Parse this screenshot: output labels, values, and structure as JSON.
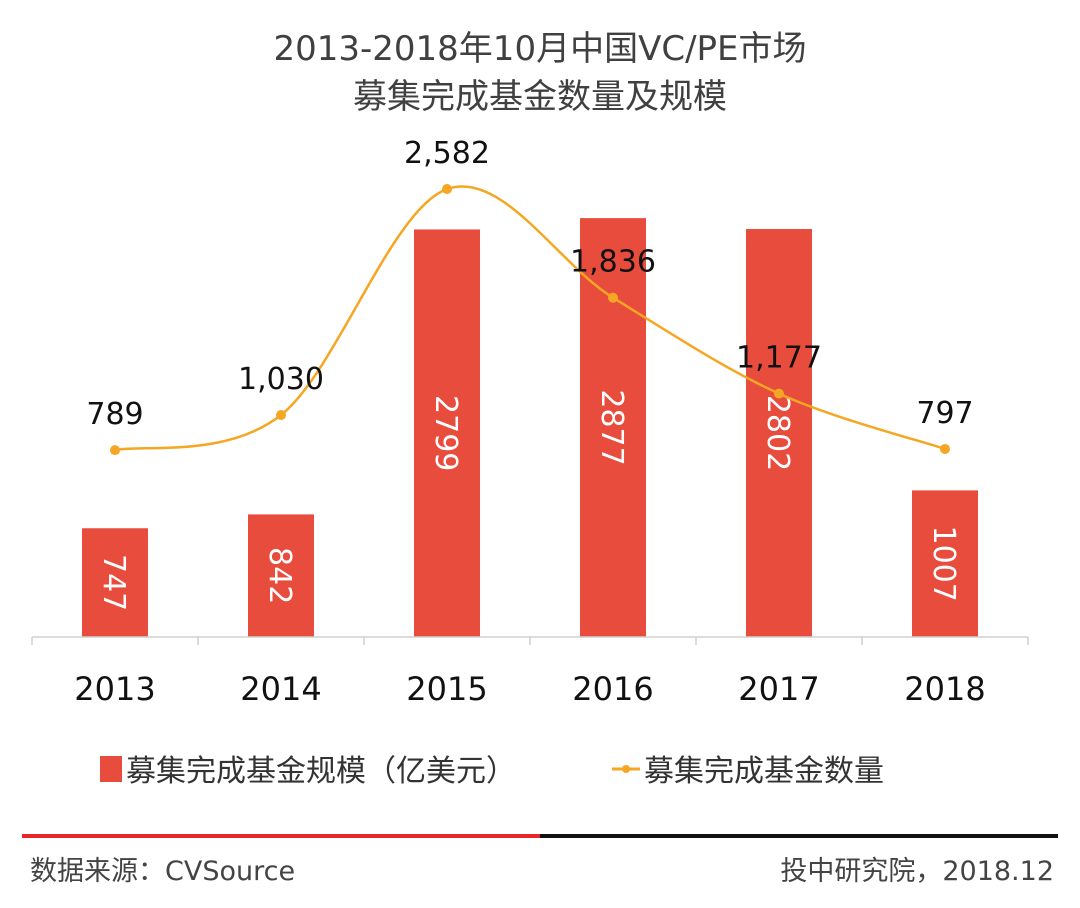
{
  "chart_data": {
    "type": "bar+line",
    "title": [
      "2013-2018年10月中国VC/PE市场",
      "募集完成基金数量及规模"
    ],
    "categories": [
      "2013",
      "2014",
      "2015",
      "2016",
      "2017",
      "2018"
    ],
    "series": [
      {
        "name": "募集完成基金规模（亿美元）",
        "type": "bar",
        "color": "#E84C3D",
        "values": [
          747,
          842,
          2799,
          2877,
          2802,
          1007
        ],
        "labels": [
          "747",
          "842",
          "2799",
          "2877",
          "2802",
          "1007"
        ]
      },
      {
        "name": "募集完成基金数量",
        "type": "line",
        "smooth": true,
        "color": "#F5A623",
        "values": [
          789,
          1030,
          2582,
          1836,
          1177,
          797
        ],
        "labels": [
          "789",
          "1,030",
          "2,582",
          "1,836",
          "1,177",
          "797"
        ]
      }
    ],
    "legend_position": "bottom",
    "grid": false
  },
  "footer": {
    "source": "数据来源：CVSource",
    "credit": "投中研究院，2018.12",
    "divider_colors": [
      "#E8262B",
      "#111111"
    ]
  }
}
